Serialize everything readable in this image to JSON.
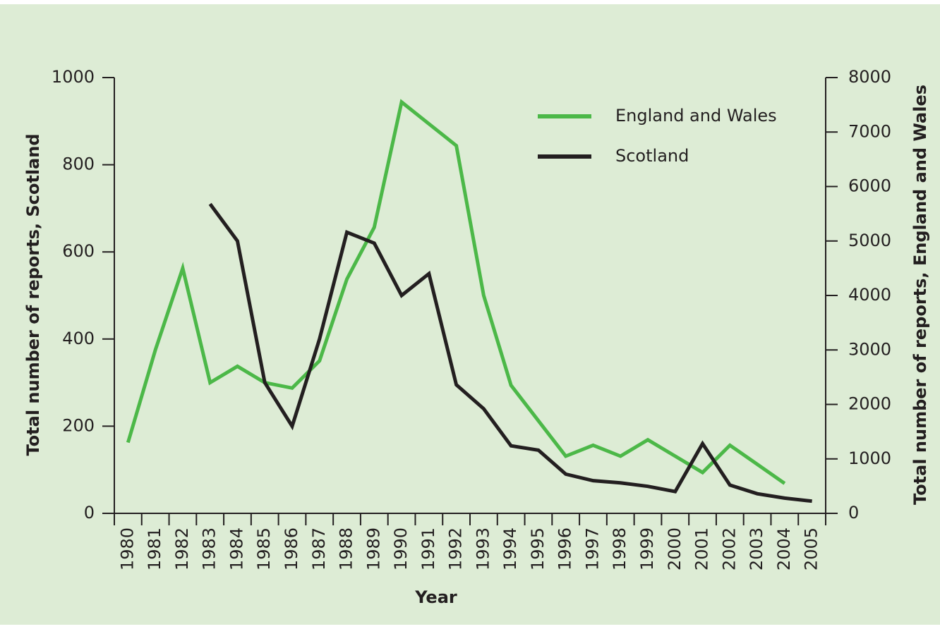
{
  "chart_data": {
    "type": "line",
    "x_label": "Year",
    "y_label": "Total number of reports, Scotland",
    "y2_label": "Total number of reports, England and Wales",
    "categories": [
      "1980",
      "1981",
      "1982",
      "1983",
      "1984",
      "1985",
      "1986",
      "1987",
      "1988",
      "1989",
      "1990",
      "1991",
      "1992",
      "1993",
      "1994",
      "1995",
      "1996",
      "1997",
      "1998",
      "1999",
      "2000",
      "2001",
      "2002",
      "2003",
      "2004",
      "2005"
    ],
    "series": [
      {
        "name": "England and Wales",
        "color": "#4cb848",
        "axis": "y2",
        "values": [
          1300,
          3000,
          4500,
          2400,
          2700,
          2400,
          2300,
          2800,
          4300,
          5250,
          7550,
          7150,
          6750,
          4000,
          2350,
          1700,
          1050,
          1250,
          1050,
          1350,
          1050,
          750,
          1250,
          900,
          550,
          null
        ]
      },
      {
        "name": "Scotland",
        "color": "#231f20",
        "values": [
          null,
          null,
          null,
          710,
          625,
          300,
          200,
          400,
          645,
          620,
          500,
          550,
          295,
          240,
          155,
          145,
          90,
          75,
          70,
          62,
          50,
          160,
          65,
          45,
          35,
          28
        ]
      }
    ],
    "ylim": [
      0,
      1000
    ],
    "yticks": [
      0,
      200,
      400,
      600,
      800,
      1000
    ],
    "y2lim": [
      0,
      8000
    ],
    "y2ticks": [
      0,
      1000,
      2000,
      3000,
      4000,
      5000,
      6000,
      7000,
      8000
    ],
    "legend": "upper right"
  }
}
